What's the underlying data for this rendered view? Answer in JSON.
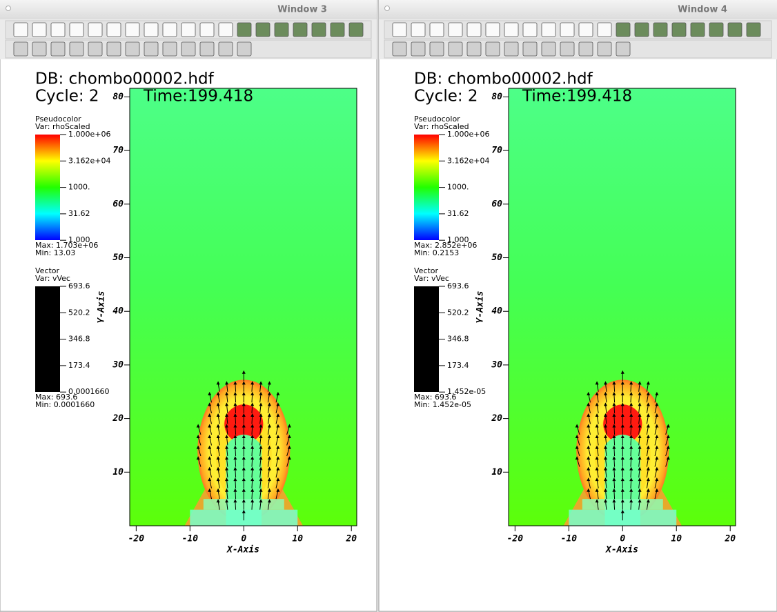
{
  "windows": [
    {
      "title": "Window 3",
      "db": "DB: chombo00002.hdf",
      "cycle": "Cycle: 2",
      "time": "Time:199.418",
      "pseudocolor": {
        "title": "Pseudocolor",
        "var": "Var: rhoScaled",
        "labels": [
          "1.000e+06",
          "3.162e+04",
          "1000.",
          "31.62",
          "1.000"
        ],
        "max": "Max:  1.703e+06",
        "min": "Min:  13.03"
      },
      "vector": {
        "title": "Vector",
        "var": "Var: vVec",
        "labels": [
          "693.6",
          "520.2",
          "346.8",
          "173.4",
          "0.0001660"
        ],
        "max": "Max:  693.6",
        "min": "Min:  0.0001660"
      },
      "x_axis": {
        "label": "X-Axis",
        "xlim": [
          -21.2,
          21
        ],
        "ticks": [
          -20,
          -10,
          0,
          10,
          20
        ]
      },
      "y_axis": {
        "label": "Y-Axis",
        "ylim": [
          0,
          81.6
        ],
        "ticks": [
          10,
          20,
          30,
          40,
          50,
          60,
          70,
          80
        ]
      }
    },
    {
      "title": "Window 4",
      "db": "DB: chombo00002.hdf",
      "cycle": "Cycle: 2",
      "time": "Time:199.418",
      "pseudocolor": {
        "title": "Pseudocolor",
        "var": "Var: rhoScaled",
        "labels": [
          "1.000e+06",
          "3.162e+04",
          "1000.",
          "31.62",
          "1.000"
        ],
        "max": "Max:  2.852e+06",
        "min": "Min:  0.2153"
      },
      "vector": {
        "title": "Vector",
        "var": "Var: vVec",
        "labels": [
          "693.6",
          "520.2",
          "346.8",
          "173.4",
          "1.452e-05"
        ],
        "max": "Max:  693.6",
        "min": "Min:  1.452e-05"
      },
      "x_axis": {
        "label": "X-Axis",
        "xlim": [
          -21.2,
          21
        ],
        "ticks": [
          -20,
          -10,
          0,
          10,
          20
        ]
      },
      "y_axis": {
        "label": "Y-Axis",
        "ylim": [
          0,
          81.6
        ],
        "ticks": [
          10,
          20,
          30,
          40,
          50,
          60,
          70,
          80
        ]
      }
    }
  ]
}
